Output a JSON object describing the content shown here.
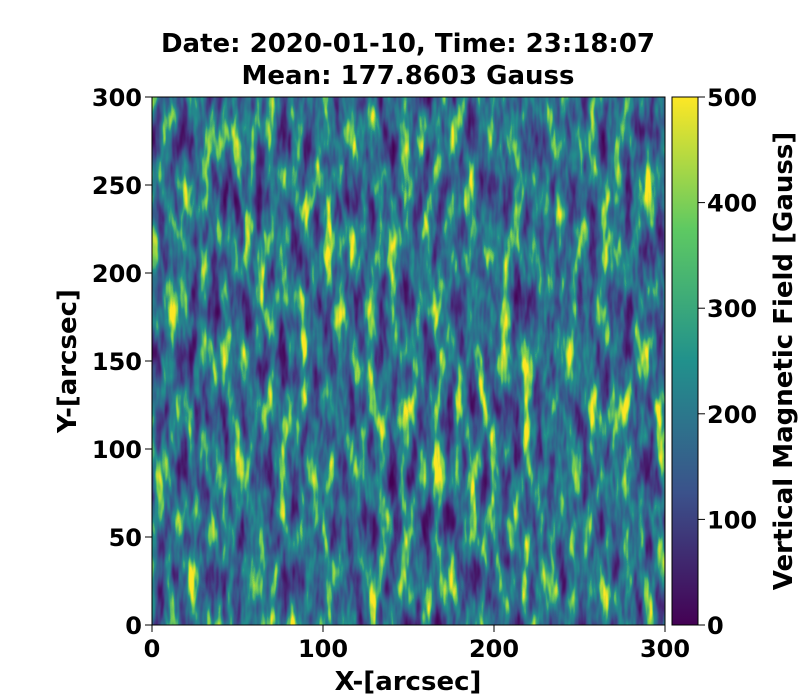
{
  "chart_data": {
    "type": "heatmap",
    "title": [
      "Date: 2020-01-10, Time: 23:18:07",
      "Mean: 177.8603 Gauss"
    ],
    "x_label": "X-[arcsec]",
    "y_label": "Y-[arcsec]",
    "xlim": [
      0,
      300
    ],
    "xticks": [
      0,
      100,
      200,
      300
    ],
    "ylim": [
      0,
      300
    ],
    "yticks": [
      0,
      50,
      100,
      150,
      200,
      250,
      300
    ],
    "colorbar": {
      "label": "Vertical Magnetic Field [Gauss]",
      "clim": [
        0,
        500
      ],
      "ticks": [
        0,
        100,
        200,
        300,
        400,
        500
      ],
      "colormap": [
        "#440154",
        "#3b528b",
        "#21918c",
        "#5ec962",
        "#fde725"
      ]
    }
  }
}
